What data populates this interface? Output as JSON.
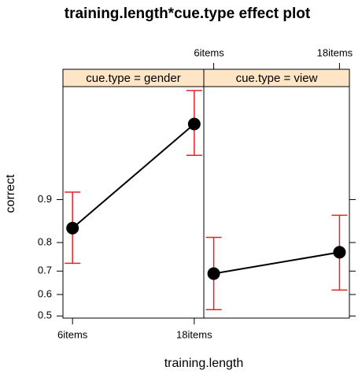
{
  "chart_data": {
    "type": "line",
    "title": "training.length*cue.type effect plot",
    "x_label": "training.length",
    "y_label": "correct",
    "categories": [
      "6items",
      "18items"
    ],
    "yscale": "logit",
    "ylim": [
      0.49,
      0.987
    ],
    "yticks": [
      0.5,
      0.6,
      0.7,
      0.8,
      0.9
    ],
    "color": "#000000",
    "error_color": "#e0242b",
    "strip_color": "#fde5c6",
    "panels": [
      {
        "strip": "cue.type = gender",
        "values": [
          0.84,
          0.974
        ],
        "lower": [
          0.73,
          0.954
        ],
        "upper": [
          0.912,
          0.986
        ]
      },
      {
        "strip": "cue.type = view",
        "values": [
          0.69,
          0.769
        ],
        "lower": [
          0.53,
          0.62
        ],
        "upper": [
          0.815,
          0.87
        ]
      }
    ]
  }
}
